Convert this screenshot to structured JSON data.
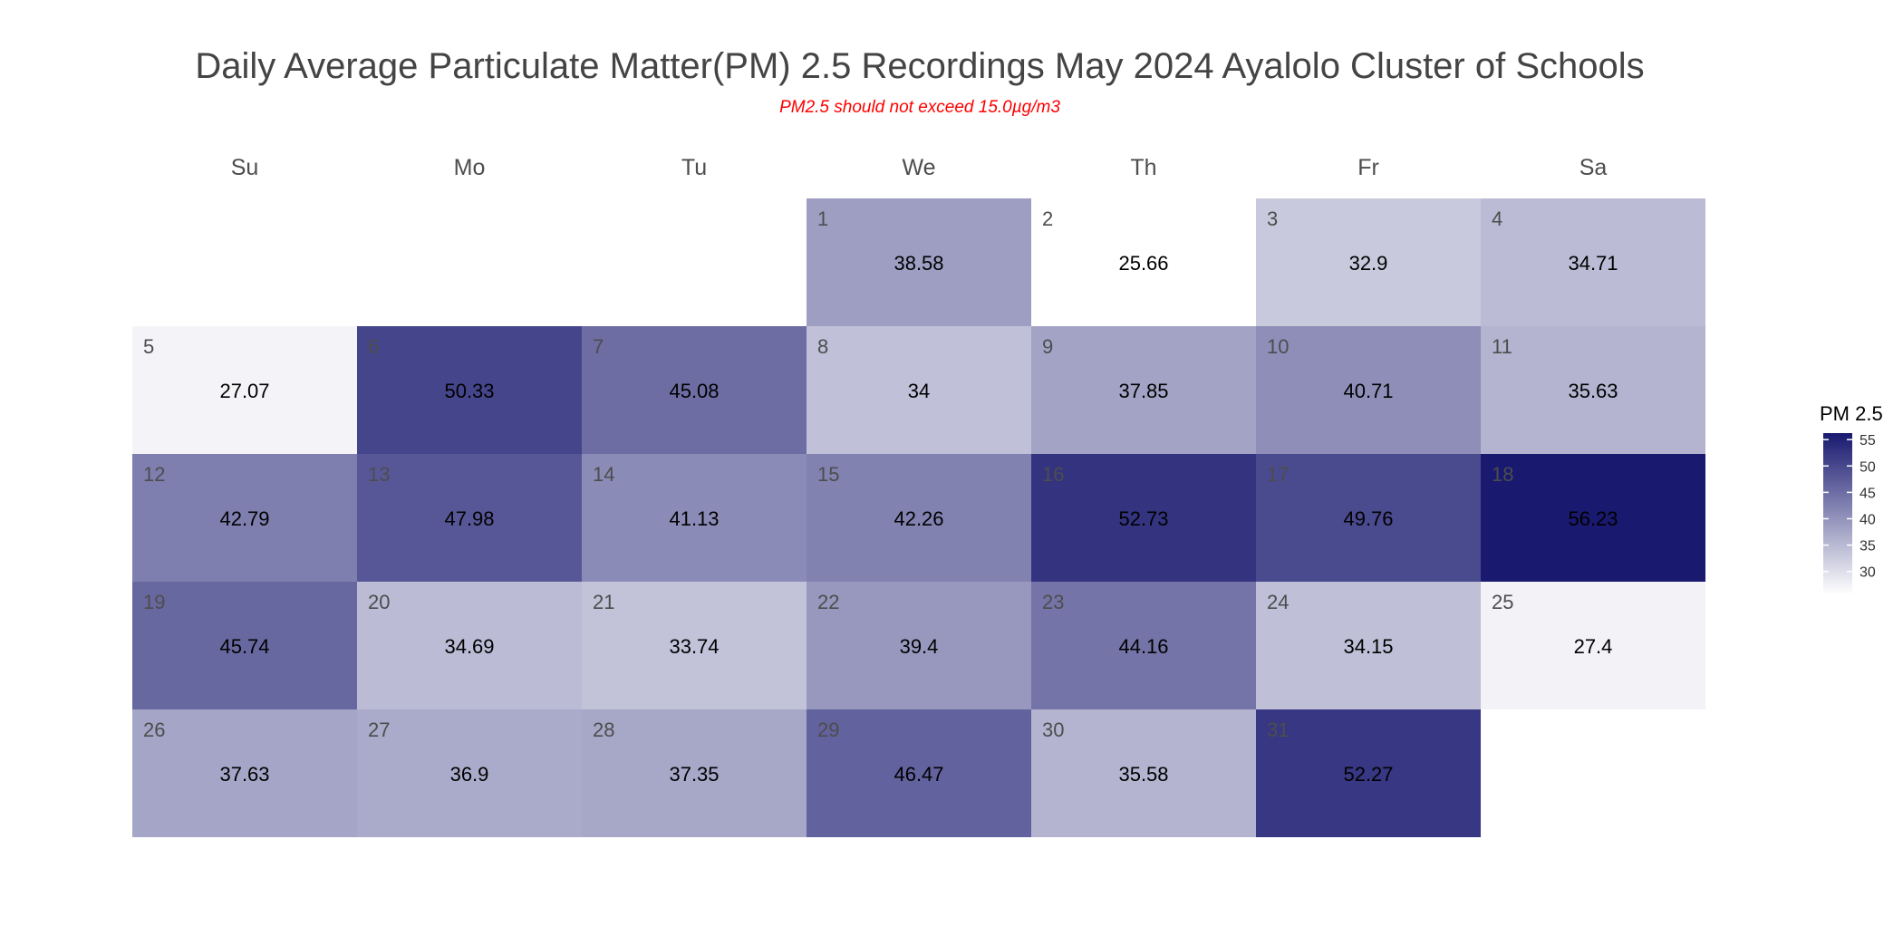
{
  "chart_data": {
    "type": "heatmap",
    "title": "Daily Average Particulate Matter(PM) 2.5 Recordings May 2024 Ayalolo Cluster of Schools",
    "subtitle": "PM2.5 should not exceed 15.0µg/m3",
    "weekdays": [
      "Su",
      "Mo",
      "Tu",
      "We",
      "Th",
      "Fr",
      "Sa"
    ],
    "first_weekday_index": 3,
    "days": [
      1,
      2,
      3,
      4,
      5,
      6,
      7,
      8,
      9,
      10,
      11,
      12,
      13,
      14,
      15,
      16,
      17,
      18,
      19,
      20,
      21,
      22,
      23,
      24,
      25,
      26,
      27,
      28,
      29,
      30,
      31
    ],
    "values": [
      "38.58",
      "25.66",
      "32.9",
      "34.71",
      "27.07",
      "50.33",
      "45.08",
      "34",
      "37.85",
      "40.71",
      "35.63",
      "42.79",
      "47.98",
      "41.13",
      "42.26",
      "52.73",
      "49.76",
      "56.23",
      "45.74",
      "34.69",
      "33.74",
      "39.4",
      "44.16",
      "34.15",
      "27.4",
      "37.63",
      "36.9",
      "37.35",
      "46.47",
      "35.58",
      "52.27"
    ],
    "legend": {
      "title": "PM 2.5",
      "ticks": [
        "30",
        "35",
        "40",
        "45",
        "50",
        "55"
      ],
      "range": [
        25.66,
        56.23
      ]
    },
    "color_low": "#ffffff",
    "color_high": "#191970"
  }
}
